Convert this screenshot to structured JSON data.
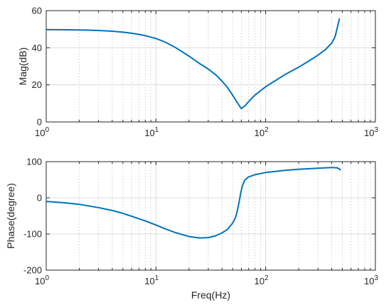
{
  "chart_data": [
    {
      "type": "line",
      "xscale": "log",
      "xlim": [
        1,
        1000
      ],
      "ylim": [
        0,
        60
      ],
      "xlabel": "",
      "ylabel": "Mag(dB)",
      "grid": true,
      "x_ticks": [
        1,
        10,
        100,
        1000
      ],
      "y_ticks": [
        0,
        20,
        40,
        60
      ],
      "y_tick_labels": [
        "0",
        "20",
        "40",
        "60"
      ],
      "series": [
        {
          "color": "#0072BD",
          "x": [
            1,
            1.5,
            2,
            3,
            4,
            5,
            6,
            7,
            8,
            10,
            12,
            15,
            20,
            25,
            30,
            35,
            40,
            45,
            50,
            55,
            60,
            65,
            70,
            80,
            100,
            150,
            200,
            250,
            300,
            350,
            400,
            430,
            470
          ],
          "y": [
            49.8,
            49.7,
            49.6,
            49.3,
            48.9,
            48.4,
            47.8,
            47.2,
            46.5,
            45.0,
            43.2,
            40.2,
            35.5,
            31.5,
            28.5,
            25.5,
            22.0,
            18.5,
            14.5,
            10.5,
            7.2,
            8.8,
            11.0,
            14.5,
            19.0,
            25.5,
            29.5,
            33.0,
            36.0,
            39.0,
            42.5,
            46.0,
            55.5
          ]
        }
      ]
    },
    {
      "type": "line",
      "xscale": "log",
      "xlim": [
        1,
        1000
      ],
      "ylim": [
        -200,
        100
      ],
      "xlabel": "Freq(Hz)",
      "ylabel": "Phase(degree)",
      "grid": true,
      "x_ticks": [
        1,
        10,
        100,
        1000
      ],
      "y_ticks": [
        -200,
        -100,
        0,
        100
      ],
      "y_tick_labels": [
        "-200",
        "-100",
        "0",
        "100"
      ],
      "series": [
        {
          "color": "#0072BD",
          "x": [
            1,
            1.5,
            2,
            3,
            4,
            5,
            6,
            7,
            8,
            10,
            12,
            15,
            20,
            25,
            30,
            35,
            40,
            45,
            50,
            53,
            55,
            57,
            59,
            61,
            63,
            65,
            70,
            80,
            100,
            150,
            200,
            300,
            400,
            450,
            480
          ],
          "y": [
            -10,
            -14,
            -18,
            -27,
            -35,
            -43,
            -51,
            -58,
            -64,
            -75,
            -85,
            -96,
            -107,
            -111,
            -110,
            -105,
            -97,
            -87,
            -70,
            -55,
            -38,
            -15,
            10,
            30,
            42,
            50,
            58,
            64,
            70,
            76,
            79,
            82,
            84,
            83,
            78
          ]
        }
      ]
    }
  ],
  "x_tick_labels": [
    {
      "base": "10",
      "exp": "0"
    },
    {
      "base": "10",
      "exp": "1"
    },
    {
      "base": "10",
      "exp": "2"
    },
    {
      "base": "10",
      "exp": "3"
    }
  ]
}
